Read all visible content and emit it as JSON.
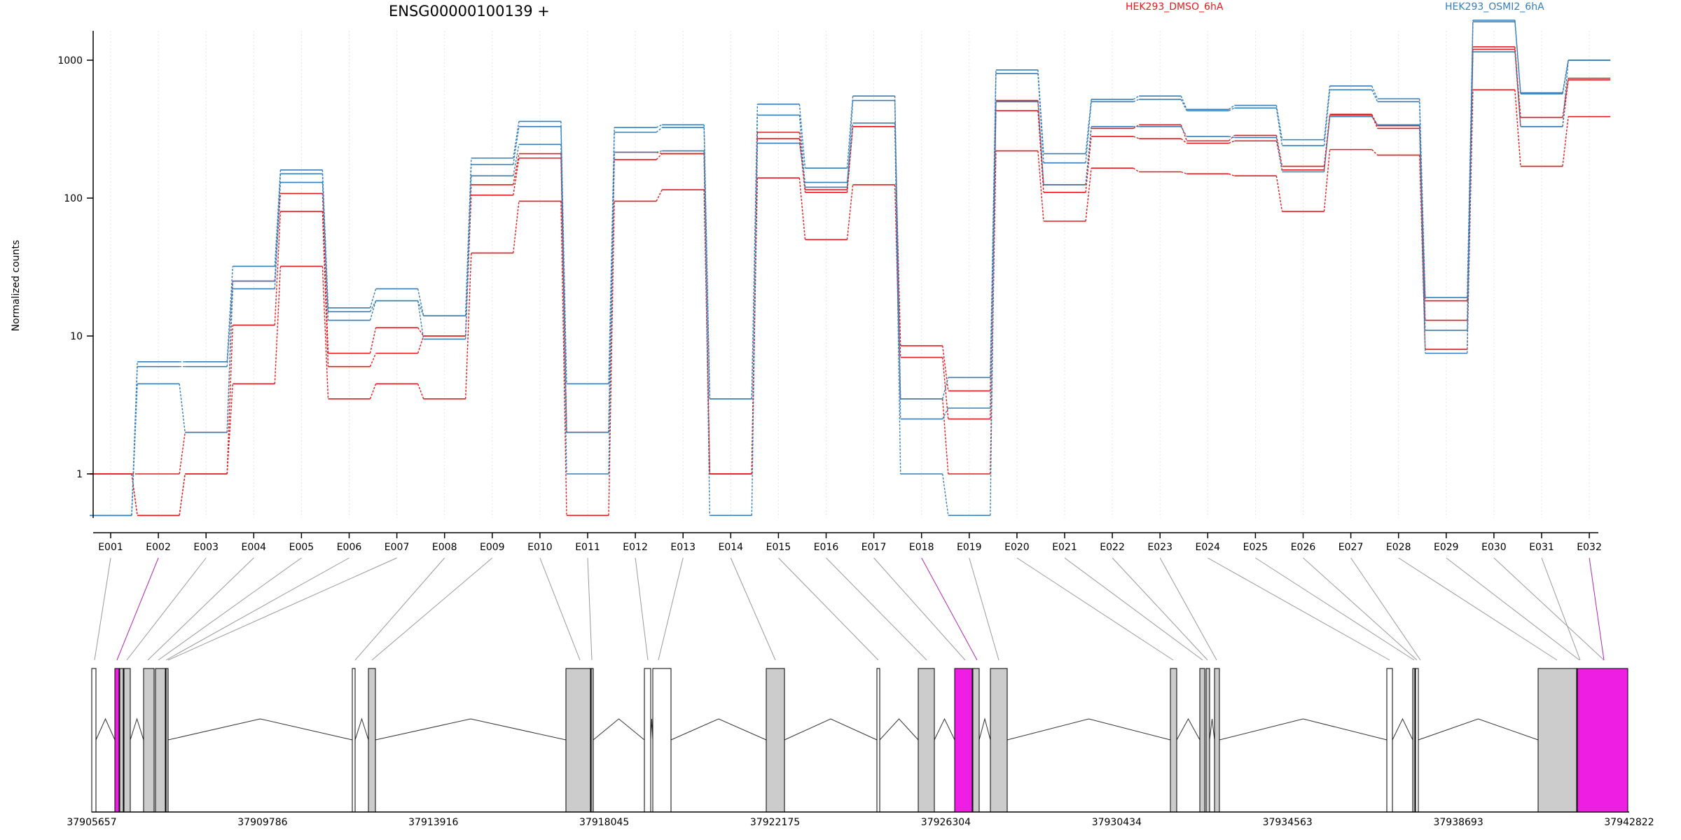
{
  "chart_data": {
    "type": "line",
    "title": "ENSG00000100139 +",
    "ylabel": "Normalized counts",
    "yscale": "log",
    "ylim": [
      0.35,
      3000
    ],
    "yticks": [
      1,
      10,
      100,
      1000
    ],
    "ytick_labels": [
      "1",
      "10",
      "100",
      "1000"
    ],
    "grid": "vertical dotted",
    "legend_position": "top",
    "colors": {
      "dmso": "#e41a1c",
      "osmi": "#377eb8",
      "highlight": "#ef1ee3",
      "exon": "#cccccc"
    },
    "legend": [
      {
        "label": "HEK293_DMSO_6hA",
        "color": "#e41a1c"
      },
      {
        "label": "HEK293_OSMI2_6hA",
        "color": "#377eb8"
      }
    ],
    "categories": [
      "E001",
      "E002",
      "E003",
      "E004",
      "E005",
      "E006",
      "E007",
      "E008",
      "E009",
      "E010",
      "E011",
      "E012",
      "E013",
      "E014",
      "E015",
      "E016",
      "E017",
      "E018",
      "E019",
      "E020",
      "E021",
      "E022",
      "E023",
      "E024",
      "E025",
      "E026",
      "E027",
      "E028",
      "E029",
      "E030",
      "E031",
      "E032"
    ],
    "series": [
      {
        "group": "HEK293_DMSO_6hA",
        "values": [
          1.0,
          1.0,
          2.0,
          25,
          108,
          7.5,
          11.5,
          10,
          125,
          210,
          2.0,
          215,
          210,
          1.0,
          300,
          115,
          330,
          8.5,
          4.0,
          510,
          125,
          320,
          340,
          260,
          285,
          170,
          405,
          335,
          18,
          1200,
          385,
          740
        ]
      },
      {
        "group": "HEK293_DMSO_6hA",
        "values": [
          1.0,
          0.5,
          1.0,
          12,
          80,
          6.0,
          7.5,
          10,
          105,
          195,
          2.0,
          190,
          210,
          1.0,
          270,
          110,
          330,
          7.0,
          2.5,
          430,
          110,
          280,
          270,
          250,
          260,
          160,
          400,
          320,
          13,
          1250,
          330,
          720
        ]
      },
      {
        "group": "HEK293_DMSO_6hA",
        "values": [
          1.0,
          0.5,
          1.0,
          4.5,
          32,
          3.5,
          4.5,
          3.5,
          40,
          95,
          0.5,
          95,
          115,
          1.0,
          140,
          50,
          125,
          3.5,
          1.0,
          220,
          68,
          165,
          155,
          150,
          145,
          80,
          225,
          205,
          8,
          610,
          170,
          390
        ]
      },
      {
        "group": "HEK293_OSMI2_6hA",
        "values": [
          0.5,
          6.5,
          6.5,
          32,
          160,
          16,
          22,
          14,
          195,
          360,
          4.5,
          325,
          340,
          3.5,
          480,
          165,
          550,
          3.5,
          5.0,
          850,
          210,
          520,
          550,
          440,
          470,
          265,
          650,
          525,
          19,
          1950,
          580,
          1000
        ]
      },
      {
        "group": "HEK293_OSMI2_6hA",
        "values": [
          0.5,
          6.0,
          6.0,
          25,
          150,
          15,
          18,
          14,
          175,
          330,
          2.0,
          300,
          325,
          3.5,
          400,
          120,
          510,
          2.5,
          3.0,
          800,
          180,
          500,
          520,
          430,
          450,
          240,
          610,
          500,
          11,
          1900,
          570,
          1000
        ]
      },
      {
        "group": "HEK293_OSMI2_6hA",
        "values": [
          0.5,
          4.5,
          2.0,
          22,
          130,
          13,
          18,
          9.5,
          145,
          245,
          1.0,
          215,
          220,
          0.5,
          250,
          130,
          350,
          1.0,
          0.5,
          500,
          125,
          330,
          330,
          280,
          275,
          155,
          390,
          340,
          7.5,
          1150,
          330,
          1000
        ]
      }
    ]
  },
  "gene_model": {
    "coordinate_labels": [
      "37905657",
      "37909786",
      "37913916",
      "37918045",
      "37922175",
      "37926304",
      "37930434",
      "37934563",
      "37938693",
      "37942822"
    ]
  }
}
